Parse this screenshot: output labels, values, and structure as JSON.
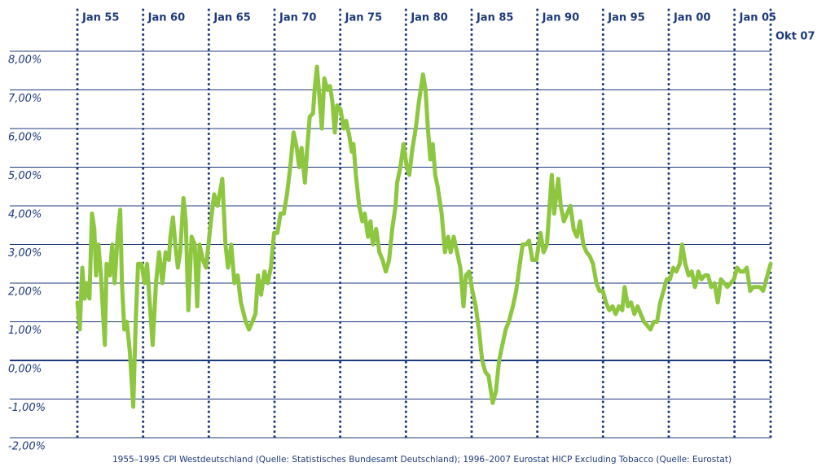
{
  "chart_data": {
    "type": "line",
    "x": [
      1955.0,
      1955.18,
      1955.37,
      1955.55,
      1955.74,
      1955.92,
      1956.11,
      1956.29,
      1956.42,
      1956.6,
      1956.79,
      1957.09,
      1957.22,
      1957.46,
      1957.65,
      1957.83,
      1958.08,
      1958.26,
      1958.39,
      1958.57,
      1958.76,
      1959.0,
      1959.25,
      1959.44,
      1959.62,
      1959.87,
      1960.11,
      1960.3,
      1960.73,
      1960.98,
      1961.22,
      1961.47,
      1961.71,
      1961.96,
      1962.08,
      1962.27,
      1962.45,
      1962.64,
      1962.82,
      1963.07,
      1963.25,
      1963.44,
      1963.69,
      1963.93,
      1964.12,
      1964.3,
      1964.55,
      1964.79,
      1965.16,
      1965.41,
      1965.66,
      1966.03,
      1966.27,
      1966.46,
      1966.7,
      1966.95,
      1967.2,
      1967.44,
      1967.81,
      1968.06,
      1968.31,
      1968.55,
      1968.74,
      1968.98,
      1969.23,
      1969.48,
      1969.72,
      1969.97,
      1970.22,
      1970.46,
      1970.71,
      1970.95,
      1971.2,
      1971.45,
      1971.69,
      1971.88,
      1972.06,
      1972.31,
      1972.49,
      1972.68,
      1972.93,
      1973.05,
      1973.23,
      1973.42,
      1973.6,
      1973.79,
      1974.03,
      1974.22,
      1974.4,
      1974.59,
      1974.77,
      1975.02,
      1975.27,
      1975.45,
      1975.7,
      1975.88,
      1976.01,
      1976.19,
      1976.44,
      1976.68,
      1976.87,
      1977.11,
      1977.3,
      1977.48,
      1977.73,
      1977.98,
      1978.22,
      1978.47,
      1978.72,
      1978.96,
      1979.21,
      1979.33,
      1979.58,
      1979.82,
      1980.07,
      1980.26,
      1980.5,
      1980.75,
      1980.99,
      1981.3,
      1981.49,
      1981.67,
      1981.86,
      1982.04,
      1982.23,
      1982.41,
      1982.72,
      1982.97,
      1983.21,
      1983.4,
      1983.64,
      1983.89,
      1984.14,
      1984.38,
      1984.57,
      1984.81,
      1985.06,
      1985.31,
      1985.55,
      1985.8,
      1986.05,
      1986.29,
      1986.6,
      1986.85,
      1987.09,
      1987.34,
      1987.59,
      1987.83,
      1988.14,
      1988.39,
      1988.63,
      1988.88,
      1989.13,
      1989.37,
      1989.62,
      1989.93,
      1990.24,
      1990.48,
      1990.73,
      1991.1,
      1991.28,
      1991.59,
      1991.78,
      1992.02,
      1992.27,
      1992.52,
      1992.76,
      1993.01,
      1993.25,
      1993.5,
      1993.75,
      1993.99,
      1994.24,
      1994.49,
      1994.73,
      1994.98,
      1995.22,
      1995.47,
      1995.72,
      1995.96,
      1996.21,
      1996.46,
      1996.64,
      1996.89,
      1997.13,
      1997.38,
      1997.63,
      1997.87,
      1998.12,
      1998.37,
      1998.61,
      1998.86,
      1999.11,
      1999.35,
      1999.6,
      1999.84,
      2000.09,
      2000.34,
      2000.58,
      2000.83,
      2001.02,
      2001.26,
      2001.51,
      2001.75,
      2002.0,
      2002.25,
      2002.49,
      2002.74,
      2002.99,
      2003.23,
      2003.48,
      2003.73,
      2003.97,
      2004.22,
      2004.46,
      2004.71,
      2004.96,
      2005.2,
      2005.45,
      2005.7,
      2005.94,
      2006.19,
      2006.44,
      2006.68,
      2006.93,
      2007.18,
      2007.75
    ],
    "series": [
      {
        "color": "#8dc63f",
        "values": [
          1.5,
          0.8,
          2.4,
          1.6,
          2.0,
          1.6,
          3.8,
          3.4,
          2.2,
          3.0,
          2.2,
          0.4,
          2.5,
          2.2,
          3.0,
          2.0,
          3.3,
          3.9,
          2.0,
          0.8,
          1.0,
          0.2,
          -1.2,
          1.0,
          2.5,
          2.5,
          2.0,
          2.5,
          0.4,
          2.0,
          2.8,
          2.0,
          2.8,
          2.6,
          3.2,
          3.7,
          3.0,
          2.4,
          2.8,
          4.2,
          3.6,
          1.3,
          3.2,
          3.0,
          1.4,
          3.0,
          2.6,
          2.4,
          3.6,
          4.3,
          4.0,
          4.7,
          3.0,
          2.4,
          3.0,
          2.0,
          2.2,
          1.5,
          1.0,
          0.8,
          1.0,
          1.2,
          2.2,
          1.7,
          2.3,
          2.0,
          2.4,
          3.3,
          3.3,
          3.8,
          3.8,
          4.3,
          5.0,
          5.9,
          5.5,
          5.0,
          5.5,
          4.6,
          5.5,
          6.3,
          6.4,
          7.0,
          7.6,
          6.8,
          6.0,
          7.3,
          7.0,
          7.1,
          6.7,
          5.9,
          6.6,
          6.5,
          6.0,
          6.2,
          5.8,
          5.4,
          5.6,
          4.8,
          4.0,
          3.6,
          3.8,
          3.2,
          3.6,
          3.0,
          3.4,
          2.8,
          2.6,
          2.3,
          2.6,
          3.4,
          4.0,
          4.6,
          5.0,
          5.6,
          5.0,
          4.8,
          5.5,
          6.0,
          6.7,
          7.4,
          7.0,
          6.0,
          5.2,
          5.6,
          4.8,
          4.5,
          3.8,
          2.8,
          3.2,
          2.8,
          3.2,
          2.8,
          2.4,
          1.4,
          2.2,
          2.3,
          1.8,
          1.4,
          0.8,
          0.0,
          -0.3,
          -0.4,
          -1.1,
          -0.8,
          0.0,
          0.4,
          0.8,
          1.0,
          1.4,
          1.8,
          2.4,
          3.0,
          3.0,
          3.1,
          2.6,
          2.6,
          3.3,
          2.8,
          3.0,
          4.8,
          3.8,
          4.7,
          4.0,
          3.6,
          3.8,
          4.0,
          3.4,
          3.2,
          3.6,
          3.0,
          2.8,
          2.7,
          2.5,
          2.0,
          1.8,
          1.8,
          1.5,
          1.3,
          1.4,
          1.2,
          1.4,
          1.3,
          1.9,
          1.4,
          1.5,
          1.2,
          1.4,
          1.2,
          1.0,
          0.9,
          0.8,
          1.0,
          1.0,
          1.5,
          1.8,
          2.1,
          2.1,
          2.4,
          2.3,
          2.5,
          3.0,
          2.5,
          2.2,
          2.3,
          1.9,
          2.3,
          2.1,
          2.2,
          2.2,
          1.9,
          2.0,
          1.5,
          2.1,
          2.0,
          1.9,
          2.0,
          2.1,
          2.4,
          2.3,
          2.3,
          2.4,
          1.8,
          1.9,
          1.9,
          1.9,
          1.8,
          2.5
        ]
      }
    ],
    "xlim": [
      1955,
      2007.75
    ],
    "xticks": [
      {
        "value": 1955,
        "label": "Jan 55"
      },
      {
        "value": 1960,
        "label": "Jan 60"
      },
      {
        "value": 1965,
        "label": "Jan 65"
      },
      {
        "value": 1970,
        "label": "Jan 70"
      },
      {
        "value": 1975,
        "label": "Jan 75"
      },
      {
        "value": 1980,
        "label": "Jan 80"
      },
      {
        "value": 1985,
        "label": "Jan 85"
      },
      {
        "value": 1990,
        "label": "Jan 90"
      },
      {
        "value": 1995,
        "label": "Jan 95"
      },
      {
        "value": 2000,
        "label": "Jan 00"
      },
      {
        "value": 2005,
        "label": "Jan 05"
      },
      {
        "value": 2007.75,
        "label": "Okt 07"
      }
    ],
    "ylim": [
      -2,
      8
    ],
    "yticks": [
      {
        "value": 8,
        "label": "8,00%"
      },
      {
        "value": 7,
        "label": "7,00%"
      },
      {
        "value": 6,
        "label": "6,00%"
      },
      {
        "value": 5,
        "label": "5,00%"
      },
      {
        "value": 4,
        "label": "4,00%"
      },
      {
        "value": 3,
        "label": "3,00%"
      },
      {
        "value": 2,
        "label": "2,00%"
      },
      {
        "value": 1,
        "label": "1,00%"
      },
      {
        "value": 0,
        "label": "0,00%"
      },
      {
        "value": -1,
        "label": "-1,00%"
      },
      {
        "value": -2,
        "label": "-2,00%"
      }
    ],
    "grid": true,
    "note": "1955–1995 CPI Westdeutschland (Quelle: Statistisches Bundesamt Deutschland); 1996–2007 Eurostat HICP Excluding Tobacco (Quelle: Eurostat)"
  }
}
